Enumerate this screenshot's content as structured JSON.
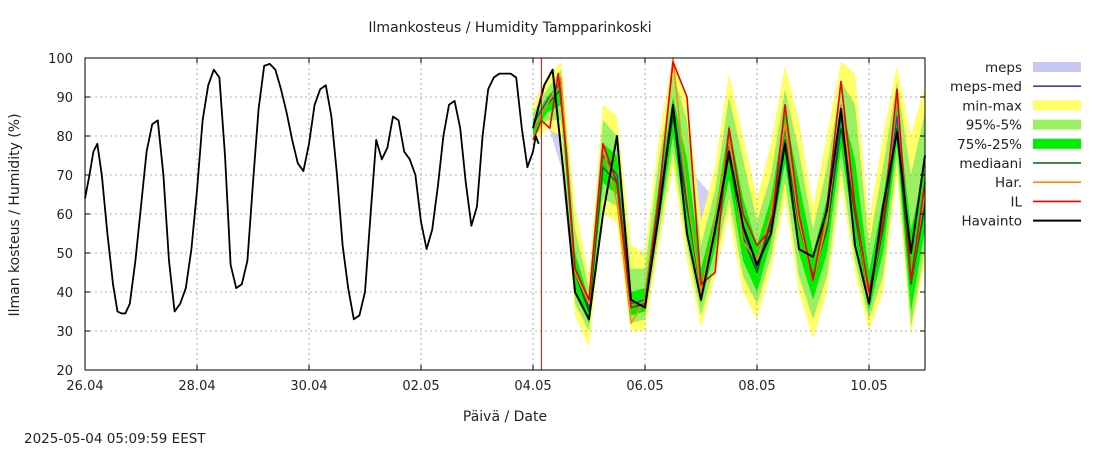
{
  "chart_data": {
    "type": "line",
    "title": "Ilmankosteus / Humidity  Tampparinkoski",
    "xlabel": "Päivä / Date",
    "ylabel": "Ilman kosteus / Humidity (%)",
    "ylim": [
      20,
      100
    ],
    "xlim_days": [
      0,
      15
    ],
    "y_ticks": [
      20,
      30,
      40,
      50,
      60,
      70,
      80,
      90,
      100
    ],
    "x_ticks": [
      {
        "day": 0,
        "label": "26.04"
      },
      {
        "day": 2,
        "label": "28.04"
      },
      {
        "day": 4,
        "label": "30.04"
      },
      {
        "day": 6,
        "label": "02.05"
      },
      {
        "day": 8,
        "label": "04.05"
      },
      {
        "day": 10,
        "label": "06.05"
      },
      {
        "day": 12,
        "label": "08.05"
      },
      {
        "day": 14,
        "label": "10.05"
      }
    ],
    "grid": true,
    "legend_position": "right",
    "now_marker_day": 8.15,
    "legend": [
      {
        "key": "meps",
        "label": "meps",
        "kind": "band",
        "color": "#c8c8f4"
      },
      {
        "key": "meps_med",
        "label": "meps-med",
        "kind": "line",
        "color": "#3c3cb4"
      },
      {
        "key": "minmax",
        "label": "min-max",
        "kind": "band",
        "color": "#ffff66"
      },
      {
        "key": "p95_5",
        "label": "95%-5%",
        "kind": "band",
        "color": "#99f060"
      },
      {
        "key": "p75_25",
        "label": "75%-25%",
        "kind": "band",
        "color": "#00ee00"
      },
      {
        "key": "mediaani",
        "label": "mediaani",
        "kind": "line",
        "color": "#006600"
      },
      {
        "key": "har",
        "label": "Har.",
        "kind": "line",
        "color": "#ff8c00"
      },
      {
        "key": "il",
        "label": "IL",
        "kind": "line",
        "color": "#ee0000"
      },
      {
        "key": "havainto",
        "label": "Havainto",
        "kind": "line",
        "color": "#000000"
      }
    ],
    "series": [
      {
        "name": "Havainto",
        "x": [
          0,
          0.08,
          0.15,
          0.22,
          0.3,
          0.4,
          0.5,
          0.58,
          0.65,
          0.72,
          0.8,
          0.9,
          1.0,
          1.1,
          1.2,
          1.3,
          1.4,
          1.5,
          1.6,
          1.7,
          1.8,
          1.9,
          2.0,
          2.1,
          2.2,
          2.3,
          2.4,
          2.5,
          2.6,
          2.7,
          2.8,
          2.9,
          3.0,
          3.1,
          3.2,
          3.3,
          3.4,
          3.5,
          3.6,
          3.7,
          3.8,
          3.9,
          4.0,
          4.1,
          4.2,
          4.3,
          4.4,
          4.5,
          4.6,
          4.7,
          4.8,
          4.9,
          5.0,
          5.1,
          5.2,
          5.3,
          5.4,
          5.5,
          5.6,
          5.7,
          5.8,
          5.9,
          6.0,
          6.1,
          6.2,
          6.3,
          6.4,
          6.5,
          6.6,
          6.7,
          6.8,
          6.9,
          7.0,
          7.1,
          7.2,
          7.3,
          7.4,
          7.5,
          7.6,
          7.7,
          7.8,
          7.9,
          8.0,
          8.05,
          8.1
        ],
        "y": [
          64,
          70,
          76,
          78,
          70,
          55,
          42,
          35,
          34.5,
          34.5,
          37,
          48,
          62,
          76,
          83,
          84,
          70,
          48,
          35,
          37,
          41,
          51,
          66,
          84,
          93,
          97,
          95,
          75,
          47,
          41,
          42,
          48,
          68,
          87,
          98,
          98.5,
          97,
          92,
          86,
          79,
          73,
          71,
          78,
          88,
          92,
          93,
          85,
          70,
          52,
          41,
          33,
          34,
          40,
          60,
          79,
          74,
          77,
          85,
          84,
          76,
          74,
          70,
          58,
          51,
          56,
          67,
          80,
          88,
          89,
          82,
          68,
          57,
          62,
          80,
          92,
          95,
          96,
          96,
          96,
          95,
          82,
          72,
          76,
          80,
          78
        ]
      },
      {
        "name": "Havainto fc",
        "x": [
          8.0,
          8.2,
          8.35,
          8.55,
          8.75,
          9.0,
          9.25,
          9.5,
          9.75,
          10.0,
          10.25,
          10.5,
          10.75,
          11.0,
          11.25,
          11.5,
          11.75,
          12.0,
          12.25,
          12.5,
          12.75,
          13.0,
          13.25,
          13.5,
          13.75,
          14.0,
          14.25,
          14.5,
          14.75,
          15.0
        ],
        "y": [
          82,
          93,
          97,
          70,
          40,
          33,
          60,
          80,
          38,
          36,
          60,
          88,
          55,
          38,
          56,
          76,
          57,
          47,
          55,
          78,
          51,
          49,
          61,
          87,
          52,
          37,
          62,
          81,
          50,
          75
        ]
      },
      {
        "name": "IL",
        "x": [
          8.0,
          8.15,
          8.3,
          8.45,
          8.6,
          8.75,
          9.0,
          9.25,
          9.5,
          9.75,
          10.0,
          10.25,
          10.5,
          10.75,
          11.0,
          11.25,
          11.5,
          11.75,
          12.0,
          12.25,
          12.5,
          12.75,
          13.0,
          13.25,
          13.5,
          13.75,
          14.0,
          14.25,
          14.5,
          14.75,
          15.0
        ],
        "y": [
          79,
          84,
          82,
          96,
          75,
          46,
          38,
          78,
          68,
          36,
          37,
          65,
          99,
          90,
          42,
          45,
          82,
          60,
          52,
          56,
          88,
          60,
          43,
          62,
          94,
          62,
          40,
          58,
          92,
          43,
          68
        ]
      },
      {
        "name": "Har.",
        "x": [
          8.0,
          8.25,
          8.5,
          8.75,
          9.0,
          9.25,
          9.5,
          9.75,
          10.0,
          10.25,
          10.5,
          10.75,
          11.0,
          11.25,
          11.5,
          11.75,
          12.0,
          12.25,
          12.5,
          12.75,
          13.0,
          13.25,
          13.5,
          13.75,
          14.0,
          14.25,
          14.5,
          14.75,
          15.0
        ],
        "y": [
          82,
          88,
          95,
          45,
          37,
          77,
          63,
          32,
          38,
          65,
          100,
          65,
          40,
          58,
          79,
          53,
          48,
          60,
          83,
          58,
          43,
          58,
          88,
          62,
          38,
          58,
          90,
          43,
          66
        ]
      },
      {
        "name": "mediaani",
        "x": [
          8.0,
          8.25,
          8.5,
          8.75,
          9.0,
          9.25,
          9.5,
          9.75,
          10.0,
          10.25,
          10.5,
          10.75,
          11.0,
          11.25,
          11.5,
          11.75,
          12.0,
          12.25,
          12.5,
          12.75,
          13.0,
          13.25,
          13.5,
          13.75,
          14.0,
          14.25,
          14.5,
          14.75,
          15.0
        ],
        "y": [
          82,
          88,
          92,
          45,
          35,
          72,
          68,
          36,
          37,
          62,
          85,
          62,
          40,
          55,
          75,
          54,
          45,
          58,
          79,
          57,
          44,
          56,
          82,
          60,
          38,
          56,
          82,
          42,
          62
        ]
      },
      {
        "name": "meps-med",
        "x": [
          8.0,
          8.25,
          8.5,
          8.75,
          9.0,
          9.25,
          9.5,
          9.75,
          10.0,
          10.25,
          10.5,
          10.75,
          11.0,
          11.25,
          11.5,
          11.75,
          12.0,
          12.25,
          12.5,
          12.75,
          13.0,
          13.25,
          13.5,
          13.75,
          14.0,
          14.25,
          14.5,
          14.75,
          15.0
        ],
        "y": [
          83,
          89,
          94,
          46,
          36,
          75,
          70,
          37,
          38,
          63,
          88,
          63,
          41,
          56,
          78,
          56,
          46,
          59,
          82,
          58,
          44,
          57,
          85,
          61,
          38,
          57,
          85,
          43,
          63
        ]
      }
    ],
    "bands": [
      {
        "name": "min-max",
        "x": [
          8.0,
          8.25,
          8.5,
          8.75,
          9.0,
          9.25,
          9.5,
          9.75,
          10.0,
          10.25,
          10.5,
          10.75,
          11.0,
          11.25,
          11.5,
          11.75,
          12.0,
          12.25,
          12.5,
          12.75,
          13.0,
          13.25,
          13.5,
          13.75,
          14.0,
          14.25,
          14.5,
          14.75,
          15.0
        ],
        "low": [
          78,
          82,
          80,
          34,
          26,
          60,
          58,
          30,
          30,
          52,
          72,
          48,
          31,
          44,
          60,
          40,
          33,
          46,
          64,
          40,
          28,
          40,
          68,
          45,
          30,
          40,
          70,
          29,
          48
        ],
        "high": [
          88,
          95,
          99,
          62,
          44,
          88,
          85,
          52,
          50,
          80,
          100,
          90,
          58,
          72,
          96,
          80,
          64,
          78,
          98,
          84,
          62,
          80,
          99,
          96,
          58,
          80,
          98,
          80,
          93
        ]
      },
      {
        "name": "95%-5%",
        "x": [
          8.0,
          8.25,
          8.5,
          8.75,
          9.0,
          9.25,
          9.5,
          9.75,
          10.0,
          10.25,
          10.5,
          10.75,
          11.0,
          11.25,
          11.5,
          11.75,
          12.0,
          12.25,
          12.5,
          12.75,
          13.0,
          13.25,
          13.5,
          13.75,
          14.0,
          14.25,
          14.5,
          14.75,
          15.0
        ],
        "low": [
          79,
          84,
          84,
          37,
          30,
          64,
          62,
          32,
          33,
          55,
          76,
          52,
          34,
          47,
          64,
          44,
          37,
          49,
          68,
          44,
          33,
          44,
          72,
          48,
          33,
          44,
          74,
          31,
          51
        ],
        "high": [
          86,
          92,
          97,
          56,
          41,
          84,
          80,
          46,
          46,
          74,
          96,
          84,
          52,
          66,
          90,
          74,
          58,
          70,
          92,
          76,
          56,
          72,
          94,
          88,
          52,
          72,
          94,
          70,
          86
        ]
      },
      {
        "name": "75%-25%",
        "x": [
          8.0,
          8.25,
          8.5,
          8.75,
          9.0,
          9.25,
          9.5,
          9.75,
          10.0,
          10.25,
          10.5,
          10.75,
          11.0,
          11.25,
          11.5,
          11.75,
          12.0,
          12.25,
          12.5,
          12.75,
          13.0,
          13.25,
          13.5,
          13.75,
          14.0,
          14.25,
          14.5,
          14.75,
          15.0
        ],
        "low": [
          80,
          86,
          88,
          41,
          32,
          68,
          65,
          34,
          35,
          58,
          80,
          56,
          37,
          51,
          69,
          48,
          40,
          53,
          73,
          50,
          38,
          50,
          77,
          54,
          35,
          50,
          78,
          35,
          56
        ],
        "high": [
          84,
          90,
          94,
          50,
          38,
          78,
          75,
          40,
          41,
          68,
          90,
          74,
          46,
          60,
          83,
          64,
          52,
          64,
          86,
          68,
          50,
          64,
          88,
          74,
          45,
          64,
          88,
          56,
          72
        ]
      },
      {
        "name": "meps",
        "x": [
          8.0,
          8.25,
          8.5,
          8.75,
          9.0,
          9.25,
          9.5,
          9.75,
          10.0,
          10.25,
          10.5,
          10.75,
          11.0,
          11.25,
          11.5,
          11.75,
          12.0,
          12.25,
          12.5,
          12.75,
          13.0,
          13.25,
          13.5,
          13.75,
          14.0,
          14.25,
          14.5,
          14.75,
          15.0
        ],
        "low": [
          80,
          84,
          72,
          38,
          32,
          66,
          60,
          33,
          34,
          56,
          78,
          50,
          37,
          50,
          68,
          46,
          40,
          52,
          72,
          48,
          36,
          48,
          74,
          50,
          34,
          48,
          76,
          34,
          54
        ],
        "high": [
          86,
          92,
          92,
          58,
          40,
          82,
          78,
          50,
          48,
          70,
          96,
          72,
          68,
          64,
          86,
          70,
          56,
          66,
          90,
          70,
          54,
          66,
          92,
          78,
          50,
          66,
          92,
          60,
          80
        ]
      }
    ]
  },
  "footer": {
    "timestamp": "2025-05-04  05:09:59 EEST"
  }
}
